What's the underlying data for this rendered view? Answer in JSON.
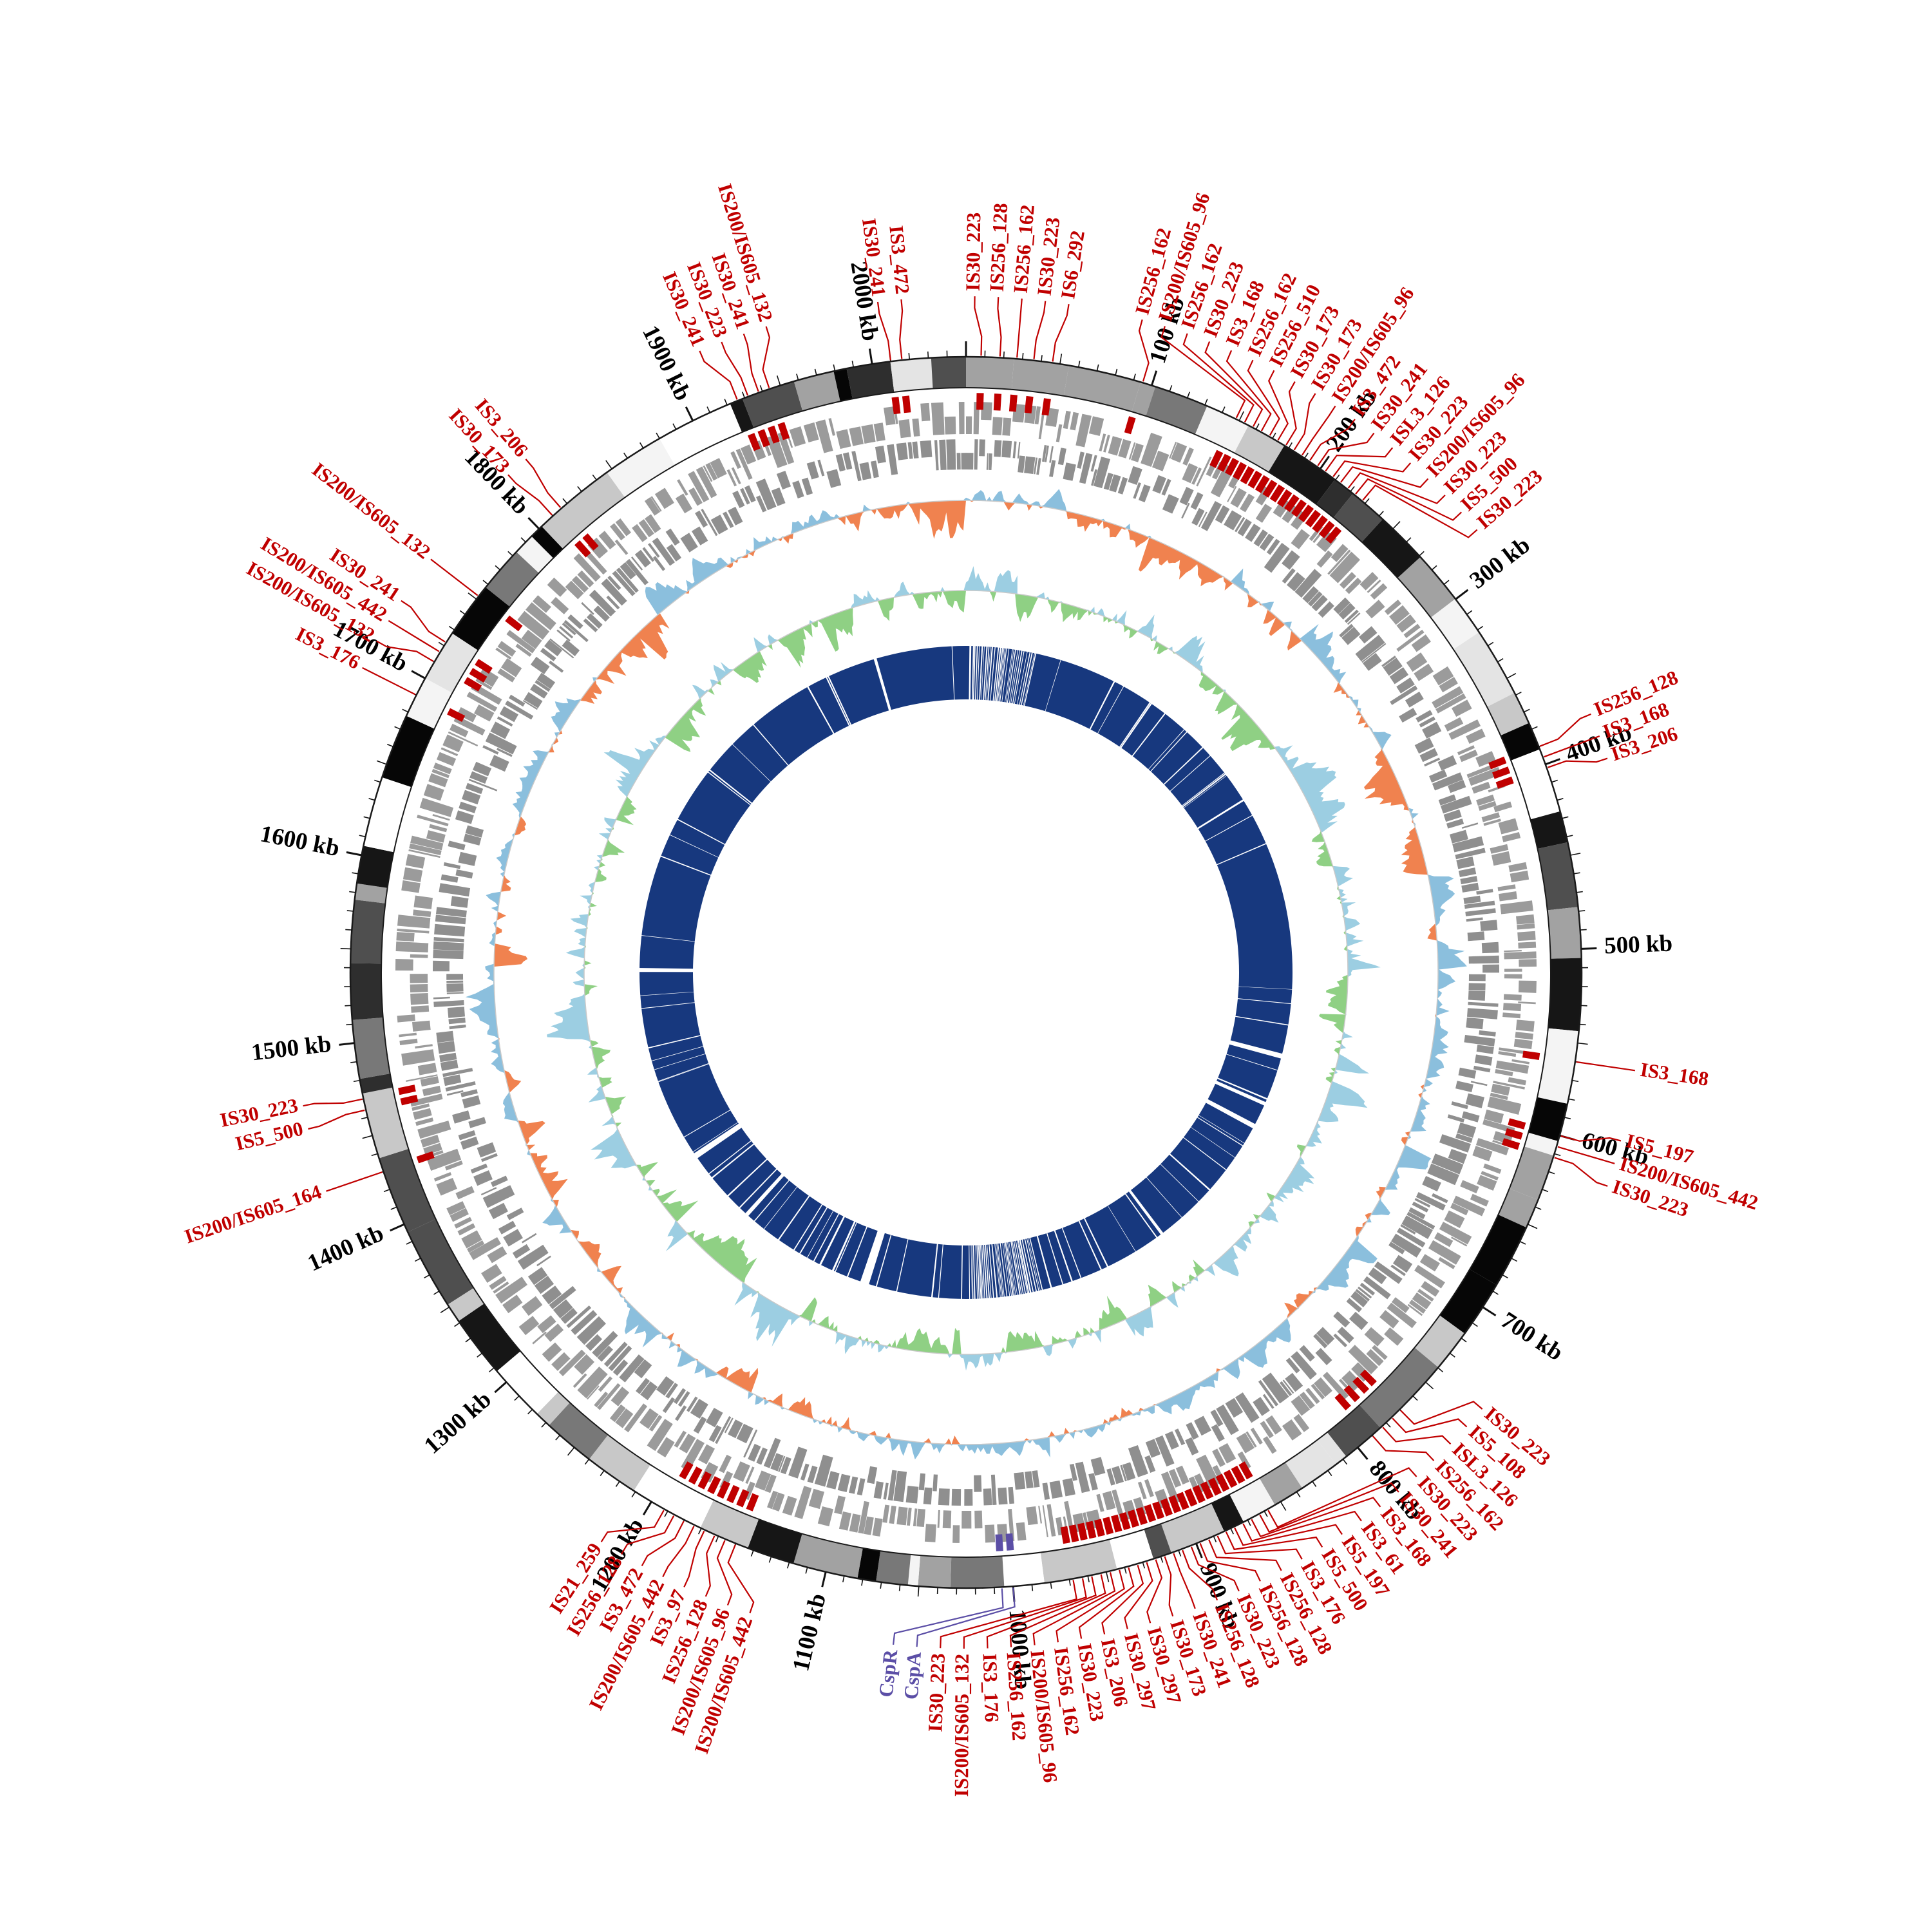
{
  "chart_data": {
    "type": "circular-genome",
    "title": "",
    "description": "Circos-style circular bacterial genome map with grayscale ideogram, gene block tracks, GC-skew style histograms, core-genome inner ring and IS insertion-sequence annotations",
    "genome_length_kb": 2050,
    "scale_ticks": {
      "interval_kb": 100,
      "labels": [
        "100 kb",
        "200 kb",
        "300 kb",
        "400 kb",
        "500 kb",
        "600 kb",
        "700 kb",
        "800 kb",
        "900 kb",
        "1000 kb",
        "1100 kb",
        "1200 kb",
        "1300 kb",
        "1400 kb",
        "1500 kb",
        "1600 kb",
        "1700 kb",
        "1800 kb",
        "1900 kb",
        "2000 kb"
      ]
    },
    "tracks": [
      {
        "id": "ideogram",
        "type": "grayscale-band-ring",
        "position": "outer"
      },
      {
        "id": "is-marks",
        "type": "tick-marks",
        "color": "#c00000"
      },
      {
        "id": "genes-forward",
        "type": "gene-blocks",
        "color": "#9b9b9b"
      },
      {
        "id": "genes-reverse",
        "type": "gene-blocks",
        "color": "#8f8f8f"
      },
      {
        "id": "gc-skew",
        "type": "histogram",
        "positive_color": "#8bbfdd",
        "negative_color": "#f0824f"
      },
      {
        "id": "inner-histogram",
        "type": "histogram",
        "positive_color": "#9ccee2",
        "negative_color": "#8fd084"
      },
      {
        "id": "core-ring",
        "type": "arc-ring",
        "color": "#17387e"
      }
    ],
    "colors": {
      "is_label": "#c00000",
      "gene_label": "#5b4ea6",
      "ideogram_outline": "#1a1a1a",
      "tick": "#111111",
      "genes_forward": "#9b9b9b",
      "genes_reverse": "#8f8f8f",
      "skew_positive": "#8bbfdd",
      "skew_negative": "#f0824f",
      "inner_positive": "#9ccee2",
      "inner_negative": "#8fd084",
      "core_ring": "#17387e",
      "baseline": "#c9c9c9",
      "is_mark": "#c00000"
    },
    "annotations": {
      "is_elements": [
        {
          "name": "IS30_223",
          "kb": 8
        },
        {
          "name": "IS256_128",
          "kb": 18
        },
        {
          "name": "IS256_162",
          "kb": 27
        },
        {
          "name": "IS30_223",
          "kb": 36
        },
        {
          "name": "IS6_292",
          "kb": 46
        },
        {
          "name": "IS256_162",
          "kb": 95
        },
        {
          "name": "IS200/IS605_96",
          "kb": 148
        },
        {
          "name": "IS256_162",
          "kb": 153
        },
        {
          "name": "IS30_223",
          "kb": 158
        },
        {
          "name": "IS3_168",
          "kb": 163
        },
        {
          "name": "IS256_162",
          "kb": 168
        },
        {
          "name": "IS256_510",
          "kb": 173
        },
        {
          "name": "IS30_173",
          "kb": 178
        },
        {
          "name": "IS30_173",
          "kb": 183
        },
        {
          "name": "IS200/IS605_96",
          "kb": 188
        },
        {
          "name": "IS3_472",
          "kb": 193
        },
        {
          "name": "IS30_241",
          "kb": 198
        },
        {
          "name": "ISL3_126",
          "kb": 203
        },
        {
          "name": "IS30_223",
          "kb": 208
        },
        {
          "name": "IS200/IS605_96",
          "kb": 213
        },
        {
          "name": "IS30_223",
          "kb": 218
        },
        {
          "name": "IS5_500",
          "kb": 223
        },
        {
          "name": "IS30_223",
          "kb": 228
        },
        {
          "name": "IS256_128",
          "kb": 390
        },
        {
          "name": "IS3_168",
          "kb": 396
        },
        {
          "name": "IS3_206",
          "kb": 402
        },
        {
          "name": "IS3_168",
          "kb": 560
        },
        {
          "name": "IS5_197",
          "kb": 600
        },
        {
          "name": "IS200/IS605_442",
          "kb": 606
        },
        {
          "name": "IS30_223",
          "kb": 612
        },
        {
          "name": "IS30_223",
          "kb": 770
        },
        {
          "name": "IS5_108",
          "kb": 776
        },
        {
          "name": "ISL3_126",
          "kb": 783
        },
        {
          "name": "IS256_162",
          "kb": 790
        },
        {
          "name": "IS30_223",
          "kb": 858
        },
        {
          "name": "IS30_241",
          "kb": 863
        },
        {
          "name": "IS3_168",
          "kb": 868
        },
        {
          "name": "IS3_61",
          "kb": 873
        },
        {
          "name": "IS5_197",
          "kb": 878
        },
        {
          "name": "IS5_500",
          "kb": 883
        },
        {
          "name": "IS3_176",
          "kb": 888
        },
        {
          "name": "IS256_128",
          "kb": 893
        },
        {
          "name": "IS256_128",
          "kb": 898
        },
        {
          "name": "IS30_223",
          "kb": 903
        },
        {
          "name": "IS256_128",
          "kb": 908
        },
        {
          "name": "IS30_241",
          "kb": 913
        },
        {
          "name": "IS30_173",
          "kb": 918
        },
        {
          "name": "IS30_297",
          "kb": 923
        },
        {
          "name": "IS30_297",
          "kb": 928
        },
        {
          "name": "IS3_206",
          "kb": 933
        },
        {
          "name": "IS30_223",
          "kb": 938
        },
        {
          "name": "IS256_162",
          "kb": 943
        },
        {
          "name": "IS200/IS605_96",
          "kb": 948
        },
        {
          "name": "IS256_162",
          "kb": 953
        },
        {
          "name": "IS3_176",
          "kb": 958
        },
        {
          "name": "IS200/IS605_132",
          "kb": 963
        },
        {
          "name": "IS30_223",
          "kb": 968
        },
        {
          "name": "IS200/IS605_442",
          "kb": 1150
        },
        {
          "name": "IS200/IS605_96",
          "kb": 1156
        },
        {
          "name": "IS256_128",
          "kb": 1162
        },
        {
          "name": "IS3_97",
          "kb": 1168
        },
        {
          "name": "IS200/IS605_442",
          "kb": 1174
        },
        {
          "name": "IS3_472",
          "kb": 1180
        },
        {
          "name": "IS256_128",
          "kb": 1186
        },
        {
          "name": "IS21_259",
          "kb": 1192
        },
        {
          "name": "IS200/IS605_164",
          "kb": 1430
        },
        {
          "name": "IS5_500",
          "kb": 1464
        },
        {
          "name": "IS30_223",
          "kb": 1470
        },
        {
          "name": "IS3_176",
          "kb": 1690
        },
        {
          "name": "IS200/IS605_132",
          "kb": 1710
        },
        {
          "name": "IS200/IS605_442",
          "kb": 1716
        },
        {
          "name": "IS30_241",
          "kb": 1722
        },
        {
          "name": "IS200/IS605_132",
          "kb": 1752
        },
        {
          "name": "IS30_173",
          "kb": 1810
        },
        {
          "name": "IS3_206",
          "kb": 1816
        },
        {
          "name": "IS30_241",
          "kb": 1926
        },
        {
          "name": "IS30_223",
          "kb": 1932
        },
        {
          "name": "IS30_241",
          "kb": 1938
        },
        {
          "name": "IS200/IS605_132",
          "kb": 1944
        },
        {
          "name": "IS30_241",
          "kb": 2010
        },
        {
          "name": "IS3_472",
          "kb": 2016
        }
      ],
      "genes": [
        {
          "name": "CspA",
          "kb": 1000
        },
        {
          "name": "CspR",
          "kb": 1006
        }
      ]
    }
  }
}
